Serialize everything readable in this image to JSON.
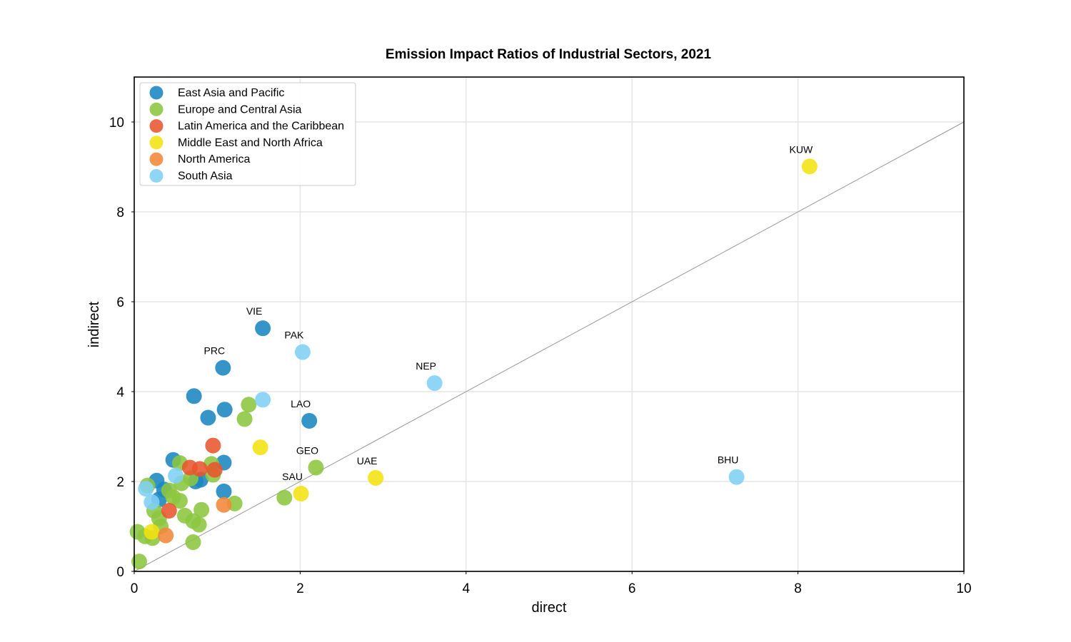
{
  "chart_data": {
    "type": "scatter",
    "title": "Emission Impact Ratios of Industrial Sectors, 2021",
    "xlabel": "direct",
    "ylabel": "indirect",
    "xlim": [
      0,
      10
    ],
    "ylim": [
      0,
      11
    ],
    "xticks": [
      0,
      2,
      4,
      6,
      8,
      10
    ],
    "yticks": [
      0,
      2,
      4,
      6,
      8,
      10
    ],
    "grid": true,
    "legend_position": "top-left",
    "reference_line": "y = x",
    "series": [
      {
        "name": "East Asia and Pacific",
        "color": "#1a86c0",
        "points": [
          {
            "x": 1.55,
            "y": 5.41,
            "label": "VIE"
          },
          {
            "x": 1.07,
            "y": 4.53,
            "label": "PRC"
          },
          {
            "x": 2.11,
            "y": 3.35,
            "label": "LAO"
          },
          {
            "x": 0.72,
            "y": 3.9
          },
          {
            "x": 1.09,
            "y": 3.6
          },
          {
            "x": 0.89,
            "y": 3.42
          },
          {
            "x": 0.47,
            "y": 2.48
          },
          {
            "x": 1.08,
            "y": 2.42
          },
          {
            "x": 0.27,
            "y": 2.02
          },
          {
            "x": 0.74,
            "y": 2.0
          },
          {
            "x": 0.8,
            "y": 2.04
          },
          {
            "x": 0.36,
            "y": 1.82
          },
          {
            "x": 1.08,
            "y": 1.78
          },
          {
            "x": 0.3,
            "y": 1.6
          }
        ]
      },
      {
        "name": "Europe and Central Asia",
        "color": "#8cc63f",
        "points": [
          {
            "x": 2.19,
            "y": 2.31,
            "label": "GEO"
          },
          {
            "x": 1.38,
            "y": 3.71
          },
          {
            "x": 1.33,
            "y": 3.39
          },
          {
            "x": 0.55,
            "y": 2.41
          },
          {
            "x": 0.93,
            "y": 2.39
          },
          {
            "x": 0.95,
            "y": 2.15
          },
          {
            "x": 0.68,
            "y": 2.07
          },
          {
            "x": 0.57,
            "y": 1.96
          },
          {
            "x": 0.16,
            "y": 1.91
          },
          {
            "x": 0.42,
            "y": 1.8
          },
          {
            "x": 0.47,
            "y": 1.65
          },
          {
            "x": 0.55,
            "y": 1.57
          },
          {
            "x": 1.81,
            "y": 1.64
          },
          {
            "x": 1.21,
            "y": 1.51
          },
          {
            "x": 0.81,
            "y": 1.37
          },
          {
            "x": 0.24,
            "y": 1.35
          },
          {
            "x": 0.61,
            "y": 1.24
          },
          {
            "x": 0.3,
            "y": 1.18
          },
          {
            "x": 0.71,
            "y": 1.12
          },
          {
            "x": 0.78,
            "y": 1.04
          },
          {
            "x": 0.32,
            "y": 1.0
          },
          {
            "x": 0.04,
            "y": 0.88
          },
          {
            "x": 0.13,
            "y": 0.78
          },
          {
            "x": 0.22,
            "y": 0.74
          },
          {
            "x": 0.71,
            "y": 0.65
          },
          {
            "x": 0.06,
            "y": 0.22
          }
        ]
      },
      {
        "name": "Latin America and the Caribbean",
        "color": "#e8552e",
        "points": [
          {
            "x": 0.95,
            "y": 2.8
          },
          {
            "x": 0.67,
            "y": 2.31
          },
          {
            "x": 0.79,
            "y": 2.28
          },
          {
            "x": 0.97,
            "y": 2.26
          },
          {
            "x": 0.42,
            "y": 1.35
          }
        ]
      },
      {
        "name": "Middle East and North Africa",
        "color": "#f2e20f",
        "points": [
          {
            "x": 8.14,
            "y": 9.01,
            "label": "KUW"
          },
          {
            "x": 2.91,
            "y": 2.08,
            "label": "UAE"
          },
          {
            "x": 2.01,
            "y": 1.73,
            "label": "SAU"
          },
          {
            "x": 1.52,
            "y": 2.76
          },
          {
            "x": 0.21,
            "y": 0.88
          }
        ]
      },
      {
        "name": "North America",
        "color": "#f3883a",
        "points": [
          {
            "x": 1.08,
            "y": 1.48
          },
          {
            "x": 0.38,
            "y": 0.8
          }
        ]
      },
      {
        "name": "South Asia",
        "color": "#7fd0f5",
        "points": [
          {
            "x": 2.03,
            "y": 4.88,
            "label": "PAK"
          },
          {
            "x": 3.62,
            "y": 4.19,
            "label": "NEP"
          },
          {
            "x": 7.26,
            "y": 2.1,
            "label": "BHU"
          },
          {
            "x": 1.55,
            "y": 3.82
          },
          {
            "x": 0.5,
            "y": 2.13
          },
          {
            "x": 0.14,
            "y": 1.84
          },
          {
            "x": 0.21,
            "y": 1.54
          }
        ]
      }
    ]
  }
}
